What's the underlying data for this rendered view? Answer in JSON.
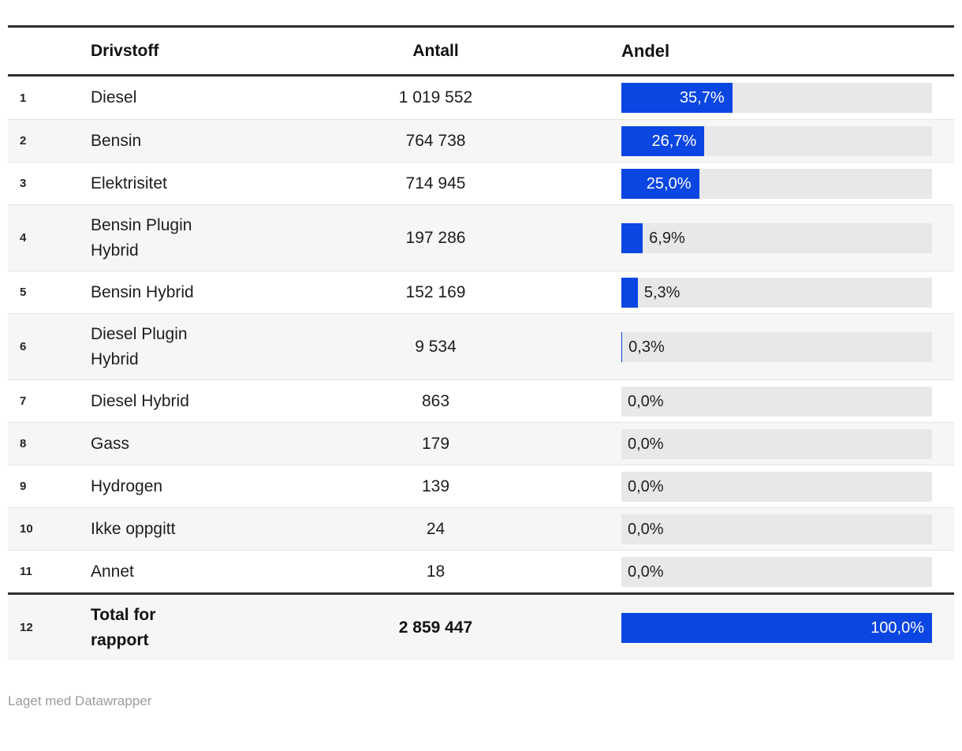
{
  "table": {
    "columns": {
      "fuel": "Drivstoff",
      "count": "Antall",
      "share": "Andel"
    },
    "rows": [
      {
        "num": "1",
        "fuel": "Diesel",
        "count": "1 019 552",
        "share_pct": 35.7,
        "share_label": "35,7%",
        "label_inside": true,
        "is_total": false
      },
      {
        "num": "2",
        "fuel": "Bensin",
        "count": "764 738",
        "share_pct": 26.7,
        "share_label": "26,7%",
        "label_inside": true,
        "is_total": false
      },
      {
        "num": "3",
        "fuel": "Elektrisitet",
        "count": "714 945",
        "share_pct": 25.0,
        "share_label": "25,0%",
        "label_inside": true,
        "is_total": false
      },
      {
        "num": "4",
        "fuel": "Bensin Plugin Hybrid",
        "count": "197 286",
        "share_pct": 6.9,
        "share_label": "6,9%",
        "label_inside": false,
        "is_total": false
      },
      {
        "num": "5",
        "fuel": "Bensin Hybrid",
        "count": "152 169",
        "share_pct": 5.3,
        "share_label": "5,3%",
        "label_inside": false,
        "is_total": false
      },
      {
        "num": "6",
        "fuel": "Diesel Plugin Hybrid",
        "count": "9 534",
        "share_pct": 0.3,
        "share_label": "0,3%",
        "label_inside": false,
        "is_total": false
      },
      {
        "num": "7",
        "fuel": "Diesel Hybrid",
        "count": "863",
        "share_pct": 0.0,
        "share_label": "0,0%",
        "label_inside": false,
        "is_total": false
      },
      {
        "num": "8",
        "fuel": "Gass",
        "count": "179",
        "share_pct": 0.0,
        "share_label": "0,0%",
        "label_inside": false,
        "is_total": false
      },
      {
        "num": "9",
        "fuel": "Hydrogen",
        "count": "139",
        "share_pct": 0.0,
        "share_label": "0,0%",
        "label_inside": false,
        "is_total": false
      },
      {
        "num": "10",
        "fuel": "Ikke oppgitt",
        "count": "24",
        "share_pct": 0.0,
        "share_label": "0,0%",
        "label_inside": false,
        "is_total": false
      },
      {
        "num": "11",
        "fuel": "Annet",
        "count": "18",
        "share_pct": 0.0,
        "share_label": "0,0%",
        "label_inside": false,
        "is_total": false
      },
      {
        "num": "12",
        "fuel": "Total for rapport",
        "count": "2 859 447",
        "share_pct": 100.0,
        "share_label": "100,0%",
        "label_inside": true,
        "is_total": true
      }
    ]
  },
  "footer": {
    "credit": "Laget med Datawrapper"
  },
  "colors": {
    "bar_fill": "#0b46e2",
    "bar_track": "#e8e8e8",
    "stripe": "#f6f6f6",
    "rule": "#2e2e2e",
    "muted": "#9c9c9c"
  },
  "chart_data": {
    "type": "table",
    "title": "",
    "columns": [
      "Drivstoff",
      "Antall",
      "Andel"
    ],
    "categories": [
      "Diesel",
      "Bensin",
      "Elektrisitet",
      "Bensin Plugin Hybrid",
      "Bensin Hybrid",
      "Diesel Plugin Hybrid",
      "Diesel Hybrid",
      "Gass",
      "Hydrogen",
      "Ikke oppgitt",
      "Annet",
      "Total for rapport"
    ],
    "series": [
      {
        "name": "Antall",
        "values": [
          1019552,
          764738,
          714945,
          197286,
          152169,
          9534,
          863,
          179,
          139,
          24,
          18,
          2859447
        ]
      },
      {
        "name": "Andel (%)",
        "values": [
          35.7,
          26.7,
          25.0,
          6.9,
          5.3,
          0.3,
          0.0,
          0.0,
          0.0,
          0.0,
          0.0,
          100.0
        ]
      }
    ],
    "bar_axis_max": 100,
    "bar_style": "proportional fill on gray track, label inside bar when wide enough, otherwise to the right of bar"
  }
}
